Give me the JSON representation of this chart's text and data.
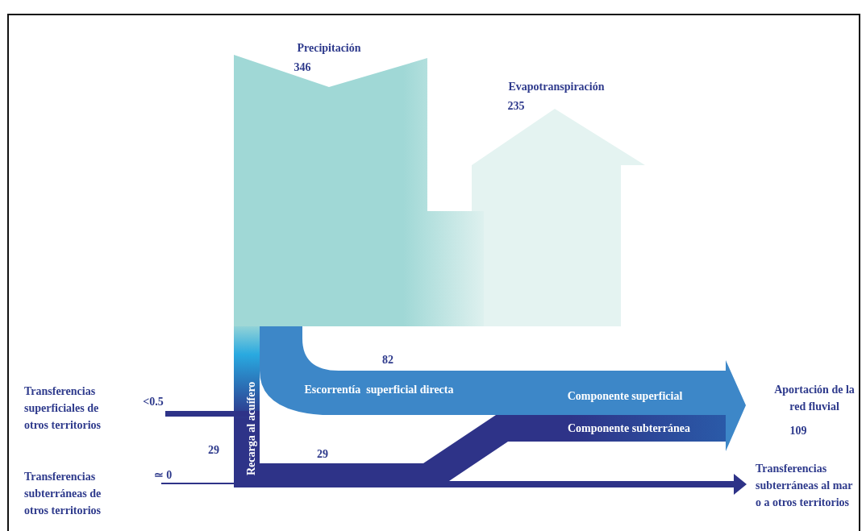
{
  "chart_data": {
    "type": "other",
    "categories": [
      "Precipitación",
      "Evapotranspiración",
      "Escorrentía  superficial directa",
      "Recarga al acuífero",
      null,
      "Aportación de la red fluvial",
      "Transferencias superficiales de otros territorios",
      "Transferencias subterráneas de otros territorios",
      "Transferencias subterráneas al mar o a otros territorios"
    ],
    "values": [
      346,
      235,
      82,
      29,
      null,
      109,
      null,
      null,
      null
    ],
    "data_labels": true,
    "colors": [
      "#a0d8d6",
      "#e4f3f1",
      "#3d87c8",
      "#29a9e0",
      "#2e3388",
      "#3d87c8",
      "#2e3388",
      "#2e3388",
      "#2e3388"
    ],
    "annotations": [
      "Componente superficial",
      "<0.5",
      "≃ 0",
      "Componente subterránea",
      "29"
    ]
  }
}
